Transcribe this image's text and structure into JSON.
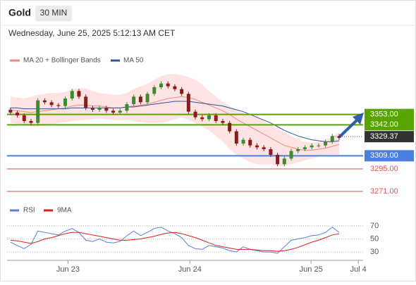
{
  "chart_data": [
    {
      "type": "candlestick",
      "title": "Gold",
      "timeframe": "30 MIN",
      "subtitle": "Wednesday, June 25, 2025 5:12:13 AM CET",
      "xlim": [
        0,
        52
      ],
      "ylim": [
        3265,
        3400
      ],
      "up_color": "#3d8b2f",
      "down_color": "#8c1c1c",
      "open": [
        3358,
        3355,
        3352,
        3346,
        3344,
        3368,
        3366,
        3363,
        3362,
        3370,
        3378,
        3372,
        3360,
        3358,
        3360,
        3357,
        3355,
        3357,
        3364,
        3372,
        3366,
        3375,
        3382,
        3386,
        3383,
        3380,
        3375,
        3356,
        3350,
        3348,
        3352,
        3346,
        3344,
        3335,
        3322,
        3326,
        3320,
        3318,
        3316,
        3310,
        3300,
        3306,
        3314,
        3316,
        3318,
        3320,
        3320,
        3324,
        3330
      ],
      "close": [
        3355,
        3352,
        3346,
        3344,
        3368,
        3366,
        3363,
        3362,
        3370,
        3378,
        3372,
        3360,
        3358,
        3360,
        3357,
        3355,
        3357,
        3364,
        3372,
        3366,
        3375,
        3382,
        3386,
        3383,
        3380,
        3375,
        3356,
        3350,
        3348,
        3352,
        3346,
        3344,
        3335,
        3322,
        3326,
        3320,
        3318,
        3316,
        3310,
        3300,
        3306,
        3314,
        3316,
        3318,
        3320,
        3320,
        3324,
        3330,
        3328
      ],
      "bands": {
        "name": "MA 20 + Bollinger Bands",
        "color": "#f08a84",
        "fill": "#fde0de",
        "middle": [
          3358,
          3357,
          3356,
          3355,
          3356,
          3357,
          3358,
          3359,
          3360,
          3362,
          3363,
          3363,
          3362,
          3362,
          3361,
          3360,
          3360,
          3361,
          3362,
          3363,
          3364,
          3366,
          3368,
          3370,
          3371,
          3372,
          3371,
          3369,
          3366,
          3363,
          3360,
          3357,
          3353,
          3348,
          3344,
          3340,
          3336,
          3332,
          3328,
          3324,
          3320,
          3318,
          3316,
          3315,
          3315,
          3316,
          3317,
          3319,
          3321
        ],
        "upper": [
          3372,
          3371,
          3370,
          3372,
          3374,
          3375,
          3376,
          3376,
          3377,
          3380,
          3381,
          3381,
          3378,
          3376,
          3375,
          3374,
          3374,
          3376,
          3380,
          3383,
          3386,
          3390,
          3394,
          3396,
          3396,
          3395,
          3393,
          3390,
          3385,
          3378,
          3372,
          3366,
          3362,
          3358,
          3354,
          3352,
          3350,
          3346,
          3342,
          3338,
          3334,
          3330,
          3326,
          3324,
          3323,
          3324,
          3326,
          3330,
          3334
        ],
        "lower": [
          3344,
          3343,
          3342,
          3340,
          3340,
          3341,
          3342,
          3344,
          3345,
          3346,
          3347,
          3347,
          3348,
          3349,
          3348,
          3347,
          3347,
          3347,
          3346,
          3345,
          3344,
          3344,
          3344,
          3346,
          3348,
          3350,
          3347,
          3344,
          3340,
          3336,
          3330,
          3324,
          3316,
          3310,
          3306,
          3302,
          3300,
          3300,
          3300,
          3298,
          3298,
          3300,
          3302,
          3304,
          3306,
          3308,
          3310,
          3310,
          3310
        ]
      },
      "ma50": {
        "name": "MA 50",
        "color": "#2e5597",
        "values": [
          3360,
          3360,
          3359,
          3359,
          3359,
          3359,
          3359,
          3359,
          3359,
          3360,
          3360,
          3360,
          3360,
          3360,
          3360,
          3360,
          3360,
          3361,
          3361,
          3362,
          3363,
          3364,
          3365,
          3366,
          3367,
          3367,
          3367,
          3366,
          3365,
          3364,
          3363,
          3362,
          3360,
          3358,
          3356,
          3353,
          3350,
          3347,
          3344,
          3340,
          3336,
          3333,
          3330,
          3328,
          3326,
          3325,
          3324,
          3324,
          3325
        ]
      },
      "levels": [
        {
          "value": 3353,
          "label": "3353.00",
          "color": "#5aa400",
          "style": "box"
        },
        {
          "value": 3342,
          "label": "3342.00",
          "color": "#5aa400",
          "style": "box"
        },
        {
          "value": 3329.37,
          "label": "3329.37",
          "color": "#333333",
          "style": "current"
        },
        {
          "value": 3309,
          "label": "3309.00",
          "color": "#4a7fe0",
          "style": "box"
        },
        {
          "value": 3295,
          "label": "3295.00",
          "color": "#e05050",
          "style": "text"
        },
        {
          "value": 3271,
          "label": "3271.00",
          "color": "#e05050",
          "style": "text"
        }
      ]
    },
    {
      "type": "line",
      "xlim": [
        0,
        52
      ],
      "ylim": [
        15,
        85
      ],
      "yticks": [
        70,
        50,
        30
      ],
      "xticks": [
        {
          "value": 8.9,
          "label": "Jun 23"
        },
        {
          "value": 26.7,
          "label": "Jun 24"
        },
        {
          "value": 44.4,
          "label": "Jun 25"
        },
        {
          "value": 51.3,
          "label": "Jul 4"
        }
      ],
      "series": [
        {
          "name": "RSI",
          "color": "#5b7fd6",
          "values": [
            45,
            40,
            35,
            42,
            62,
            60,
            58,
            56,
            62,
            66,
            60,
            48,
            46,
            50,
            45,
            44,
            46,
            55,
            62,
            55,
            60,
            66,
            68,
            62,
            58,
            52,
            40,
            35,
            34,
            40,
            38,
            36,
            32,
            30,
            38,
            34,
            32,
            30,
            30,
            28,
            38,
            48,
            50,
            52,
            55,
            56,
            60,
            68,
            60
          ]
        },
        {
          "name": "9MA",
          "color": "#d42020",
          "values": [
            48,
            47,
            45,
            43,
            46,
            50,
            52,
            55,
            58,
            60,
            60,
            58,
            56,
            54,
            52,
            50,
            48,
            48,
            49,
            50,
            52,
            54,
            57,
            59,
            60,
            58,
            55,
            52,
            48,
            44,
            40,
            38,
            36,
            34,
            34,
            34,
            33,
            32,
            32,
            31,
            32,
            34,
            37,
            41,
            45,
            48,
            52,
            56,
            58
          ]
        }
      ]
    }
  ]
}
